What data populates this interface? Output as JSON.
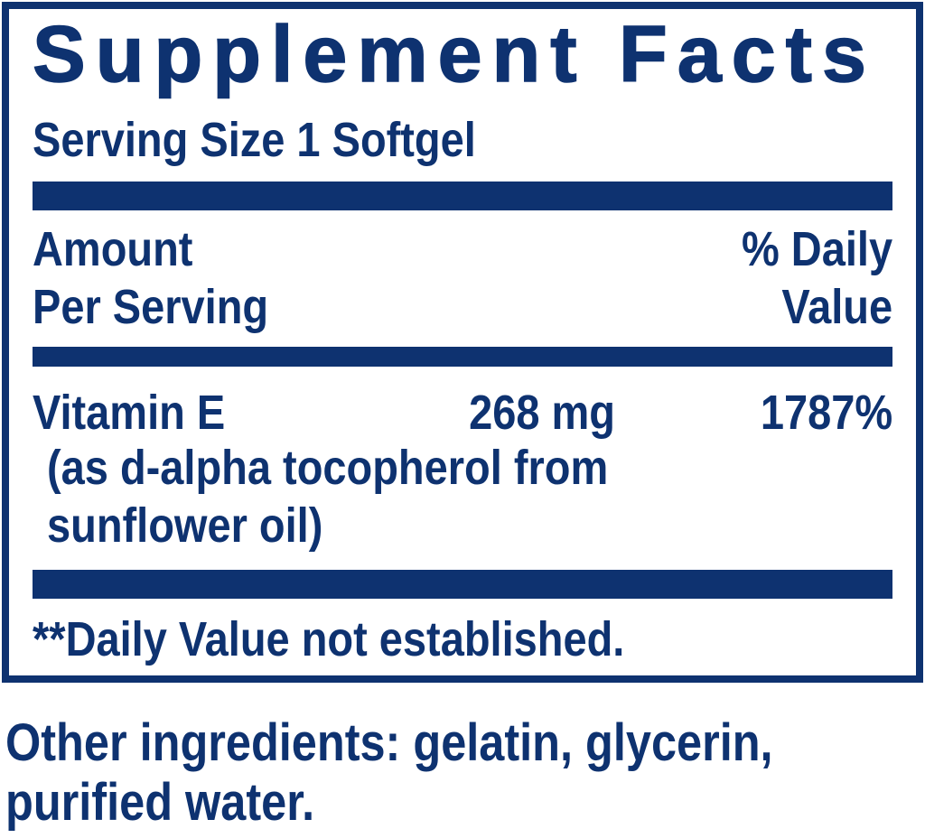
{
  "label": {
    "accent_color": "#0e3270",
    "background_color": "#ffffff",
    "title": "Supplement Facts",
    "serving_size": "Serving Size 1 Softgel",
    "columns": {
      "amount_header": "Amount\nPer Serving",
      "daily_value_header": "% Daily\nValue"
    },
    "rows": [
      {
        "name": "Vitamin E",
        "amount": "268 mg",
        "daily_value": "1787%",
        "detail": "(as d-alpha tocopherol from\nsunflower oil)"
      }
    ],
    "footnote": "**Daily Value not established.",
    "other_ingredients": "Other ingredients: gelatin, glycerin,\npurified water."
  }
}
